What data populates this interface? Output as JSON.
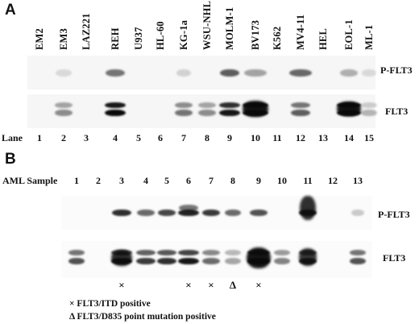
{
  "panel_a": {
    "letter": "A",
    "cell_lines": [
      "EM2",
      "EM3",
      "LAZ221",
      "REH",
      "U937",
      "HL-60",
      "KG-1a",
      "WSU-NHL",
      "MOLM-1",
      "BV173",
      "K562",
      "MV4-11",
      "HEL",
      "EOL-1",
      "ML-1"
    ],
    "lane_label": "Lane",
    "lanes": [
      "1",
      "2",
      "3",
      "4",
      "5",
      "6",
      "7",
      "8",
      "9",
      "10",
      "11",
      "12",
      "13",
      "14",
      "15"
    ],
    "blot_labels": {
      "p_flt3": "P-FLT3",
      "flt3": "FLT3"
    }
  },
  "panel_b": {
    "letter": "B",
    "sample_label": "AML Sample",
    "samples": [
      "1",
      "2",
      "3",
      "4",
      "5",
      "6",
      "7",
      "8",
      "9",
      "10",
      "11",
      "12",
      "13"
    ],
    "blot_labels": {
      "p_flt3": "P-FLT3",
      "flt3": "FLT3"
    },
    "markers": [
      {
        "sample": "3",
        "symbol": "×"
      },
      {
        "sample": "6",
        "symbol": "×"
      },
      {
        "sample": "7",
        "symbol": "×"
      },
      {
        "sample": "8",
        "symbol": "Δ"
      },
      {
        "sample": "9",
        "symbol": "×"
      }
    ],
    "legend": [
      "× FLT3/ITD positive",
      "Δ FLT3/D835 point mutation positive"
    ]
  }
}
